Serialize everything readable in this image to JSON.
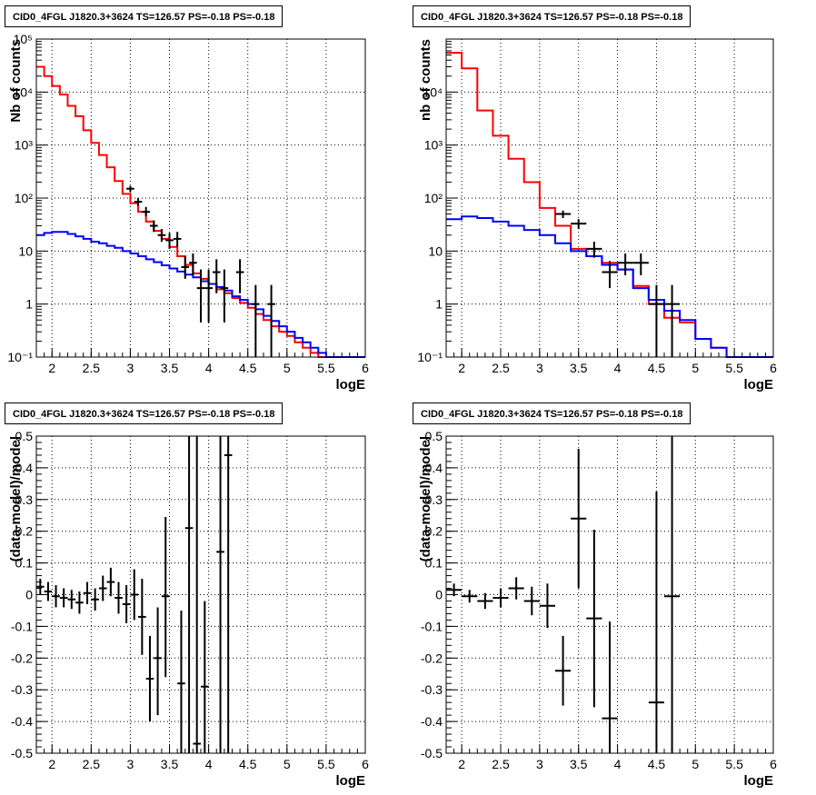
{
  "chart_data": [
    {
      "type": "line",
      "title": "CID0_4FGL J1820.3+3624 TS=126.57 PS=-0.18 PS=-0.18",
      "xlabel": "logE",
      "ylabel": "Nb of counts",
      "xlim": [
        1.8,
        6.0
      ],
      "ylim": [
        0.1,
        100000
      ],
      "yscale": "log",
      "grid": true,
      "xticks": [
        "2",
        "2.5",
        "3",
        "3.5",
        "4",
        "4.5",
        "5",
        "5.5",
        "6"
      ],
      "yticks": [
        "10⁻¹",
        "1",
        "10",
        "10²",
        "10³",
        "10⁴",
        "10⁵"
      ],
      "bin_edges": [
        1.8,
        1.9,
        2.0,
        2.1,
        2.2,
        2.3,
        2.4,
        2.5,
        2.6,
        2.7,
        2.8,
        2.9,
        3.0,
        3.1,
        3.2,
        3.3,
        3.4,
        3.5,
        3.6,
        3.7,
        3.8,
        3.9,
        4.0,
        4.1,
        4.2,
        4.3,
        4.4,
        4.5,
        4.6,
        4.7,
        4.8,
        4.9,
        5.0,
        5.1,
        5.2,
        5.3,
        5.4,
        5.5,
        5.6,
        5.7,
        5.8,
        5.9,
        6.0
      ],
      "series": [
        {
          "color": "#ff0000",
          "values": [
            30000,
            20000,
            13000,
            9000,
            5500,
            3500,
            1900,
            1100,
            650,
            380,
            210,
            120,
            80,
            55,
            36,
            24,
            17,
            12,
            8,
            5.5,
            3.8,
            3,
            2.4,
            1.9,
            1.6,
            1.3,
            1.05,
            0.85,
            0.65,
            0.5,
            0.38,
            0.3,
            0.25,
            0.19,
            0.15,
            0.12,
            0.1,
            0.1,
            0.1,
            0.1,
            0.1,
            0.1
          ]
        },
        {
          "color": "#0000ff",
          "values": [
            20,
            22,
            23,
            23,
            21,
            19,
            17,
            15,
            14,
            12.5,
            11.5,
            10,
            9,
            8,
            7,
            6.2,
            5.4,
            4.7,
            4.1,
            3.6,
            3.2,
            2.7,
            2.4,
            2.1,
            1.8,
            1.4,
            1.2,
            1.0,
            0.8,
            0.6,
            0.48,
            0.38,
            0.3,
            0.23,
            0.19,
            0.15,
            0.12,
            0.1,
            0.1,
            0.1,
            0.1,
            0.1
          ]
        }
      ],
      "points": [
        {
          "x": 3.0,
          "y": 150,
          "xerr": 0.05,
          "ylo": 130,
          "yhi": 170
        },
        {
          "x": 3.1,
          "y": 85,
          "xerr": 0.05,
          "ylo": 72,
          "yhi": 100
        },
        {
          "x": 3.2,
          "y": 55,
          "xerr": 0.05,
          "ylo": 45,
          "yhi": 68
        },
        {
          "x": 3.3,
          "y": 30,
          "xerr": 0.05,
          "ylo": 23,
          "yhi": 38
        },
        {
          "x": 3.4,
          "y": 20,
          "xerr": 0.05,
          "ylo": 15,
          "yhi": 26
        },
        {
          "x": 3.5,
          "y": 16,
          "xerr": 0.05,
          "ylo": 11,
          "yhi": 22
        },
        {
          "x": 3.6,
          "y": 17,
          "xerr": 0.05,
          "ylo": 12,
          "yhi": 23
        },
        {
          "x": 3.7,
          "y": 5,
          "xerr": 0.05,
          "ylo": 3,
          "yhi": 8
        },
        {
          "x": 3.8,
          "y": 6,
          "xerr": 0.05,
          "ylo": 3.5,
          "yhi": 9
        },
        {
          "x": 3.9,
          "y": 2,
          "xerr": 0.05,
          "ylo": 0.45,
          "yhi": 4.5
        },
        {
          "x": 4.0,
          "y": 2,
          "xerr": 0.05,
          "ylo": 0.45,
          "yhi": 4.5
        },
        {
          "x": 4.1,
          "y": 4,
          "xerr": 0.05,
          "ylo": 1.6,
          "yhi": 7
        },
        {
          "x": 4.2,
          "y": 2,
          "xerr": 0.05,
          "ylo": 0.45,
          "yhi": 4.5
        },
        {
          "x": 4.4,
          "y": 4,
          "xerr": 0.05,
          "ylo": 1.6,
          "yhi": 7
        },
        {
          "x": 4.6,
          "y": 1,
          "xerr": 0.05,
          "ylo": 0.1,
          "yhi": 2.3
        },
        {
          "x": 4.8,
          "y": 1,
          "xerr": 0.05,
          "ylo": 0.1,
          "yhi": 2.3
        }
      ]
    },
    {
      "type": "line",
      "title": "CID0_4FGL J1820.3+3624 TS=126.57 PS=-0.18 PS=-0.18",
      "xlabel": "logE",
      "ylabel": "nb of counts",
      "xlim": [
        1.8,
        6.0
      ],
      "ylim": [
        0.1,
        100000
      ],
      "yscale": "log",
      "grid": true,
      "xticks": [
        "2",
        "2.5",
        "3",
        "3.5",
        "4",
        "4.5",
        "5",
        "5.5",
        "6"
      ],
      "yticks": [
        "10⁻¹",
        "1",
        "10",
        "10²",
        "10³",
        "10⁴"
      ],
      "bin_edges": [
        1.8,
        2.0,
        2.2,
        2.4,
        2.6,
        2.8,
        3.0,
        3.2,
        3.4,
        3.6,
        3.8,
        4.0,
        4.2,
        4.4,
        4.6,
        4.8,
        5.0,
        5.2,
        5.4,
        5.6,
        5.8,
        6.0
      ],
      "series": [
        {
          "color": "#ff0000",
          "values": [
            55000,
            28000,
            4500,
            1500,
            550,
            200,
            65,
            30,
            11,
            8,
            6,
            4.5,
            2.2,
            1.0,
            0.55,
            0.45,
            0.22,
            0.15,
            0.1,
            0.1,
            0.1
          ]
        },
        {
          "color": "#0000ff",
          "values": [
            40,
            45,
            42,
            36,
            30,
            25,
            20,
            14,
            10,
            8,
            5.5,
            4.5,
            2,
            1.2,
            0.75,
            0.5,
            0.22,
            0.15,
            0.1,
            0.1,
            0.1
          ]
        }
      ],
      "points": [
        {
          "x": 3.3,
          "y": 50,
          "xerr": 0.1,
          "ylo": 42,
          "yhi": 58
        },
        {
          "x": 3.5,
          "y": 33,
          "xerr": 0.1,
          "ylo": 26,
          "yhi": 40
        },
        {
          "x": 3.7,
          "y": 11,
          "xerr": 0.1,
          "ylo": 7.5,
          "yhi": 15
        },
        {
          "x": 3.9,
          "y": 4,
          "xerr": 0.1,
          "ylo": 2,
          "yhi": 6.5
        },
        {
          "x": 4.1,
          "y": 6,
          "xerr": 0.1,
          "ylo": 3.5,
          "yhi": 9
        },
        {
          "x": 4.3,
          "y": 6,
          "xerr": 0.1,
          "ylo": 3.5,
          "yhi": 9
        },
        {
          "x": 4.5,
          "y": 1,
          "xerr": 0.1,
          "ylo": 0.1,
          "yhi": 2.3
        },
        {
          "x": 4.7,
          "y": 1,
          "xerr": 0.1,
          "ylo": 0.1,
          "yhi": 2.3
        }
      ]
    },
    {
      "type": "scatter",
      "title": "CID0_4FGL J1820.3+3624 TS=126.57 PS=-0.18 PS=-0.18",
      "xlabel": "logE",
      "ylabel": "(data-model)/model",
      "xlim": [
        1.8,
        6.0
      ],
      "ylim": [
        -0.5,
        0.5
      ],
      "grid": true,
      "xticks": [
        "2",
        "2.5",
        "3",
        "3.5",
        "4",
        "4.5",
        "5",
        "5.5",
        "6"
      ],
      "yticks": [
        "-0.5",
        "-0.4",
        "-0.3",
        "-0.2",
        "-0.1",
        "0",
        "0.1",
        "0.2",
        "0.3",
        "0.4",
        "0.5"
      ],
      "points": [
        {
          "x": 1.85,
          "y": 0.025,
          "xerr": 0.05,
          "ylo": 0.0,
          "yhi": 0.05
        },
        {
          "x": 1.95,
          "y": 0.01,
          "xerr": 0.05,
          "ylo": -0.02,
          "yhi": 0.04
        },
        {
          "x": 2.05,
          "y": -0.005,
          "xerr": 0.05,
          "ylo": -0.04,
          "yhi": 0.03
        },
        {
          "x": 2.15,
          "y": -0.01,
          "xerr": 0.05,
          "ylo": -0.04,
          "yhi": 0.02
        },
        {
          "x": 2.25,
          "y": -0.015,
          "xerr": 0.05,
          "ylo": -0.045,
          "yhi": 0.015
        },
        {
          "x": 2.35,
          "y": -0.025,
          "xerr": 0.05,
          "ylo": -0.06,
          "yhi": 0.01
        },
        {
          "x": 2.45,
          "y": 0.005,
          "xerr": 0.05,
          "ylo": -0.03,
          "yhi": 0.04
        },
        {
          "x": 2.55,
          "y": -0.015,
          "xerr": 0.05,
          "ylo": -0.05,
          "yhi": 0.02
        },
        {
          "x": 2.65,
          "y": 0.02,
          "xerr": 0.05,
          "ylo": -0.02,
          "yhi": 0.06
        },
        {
          "x": 2.75,
          "y": 0.04,
          "xerr": 0.05,
          "ylo": -0.005,
          "yhi": 0.085
        },
        {
          "x": 2.85,
          "y": -0.01,
          "xerr": 0.05,
          "ylo": -0.06,
          "yhi": 0.04
        },
        {
          "x": 2.95,
          "y": -0.03,
          "xerr": 0.05,
          "ylo": -0.09,
          "yhi": 0.03
        },
        {
          "x": 3.05,
          "y": 0.0,
          "xerr": 0.05,
          "ylo": -0.08,
          "yhi": 0.08
        },
        {
          "x": 3.15,
          "y": -0.07,
          "xerr": 0.05,
          "ylo": -0.19,
          "yhi": 0.05
        },
        {
          "x": 3.25,
          "y": -0.265,
          "xerr": 0.05,
          "ylo": -0.4,
          "yhi": -0.13
        },
        {
          "x": 3.35,
          "y": -0.2,
          "xerr": 0.05,
          "ylo": -0.38,
          "yhi": -0.04
        },
        {
          "x": 3.45,
          "y": -0.005,
          "xerr": 0.05,
          "ylo": -0.26,
          "yhi": 0.245
        },
        {
          "x": 3.65,
          "y": -0.28,
          "xerr": 0.05,
          "ylo": -0.5,
          "yhi": -0.05
        },
        {
          "x": 3.75,
          "y": 0.21,
          "xerr": 0.05,
          "ylo": -0.5,
          "yhi": 0.5
        },
        {
          "x": 3.85,
          "y": -0.47,
          "xerr": 0.05,
          "ylo": -0.5,
          "yhi": 0.5
        },
        {
          "x": 3.95,
          "y": -0.29,
          "xerr": 0.05,
          "ylo": -0.5,
          "yhi": -0.02
        },
        {
          "x": 4.15,
          "y": 0.135,
          "xerr": 0.05,
          "ylo": -0.5,
          "yhi": 0.5
        },
        {
          "x": 4.25,
          "y": 0.44,
          "xerr": 0.05,
          "ylo": -0.5,
          "yhi": 0.5
        }
      ]
    },
    {
      "type": "scatter",
      "title": "CID0_4FGL J1820.3+3624 TS=126.57 PS=-0.18 PS=-0.18",
      "xlabel": "logE",
      "ylabel": "(data-model)/model",
      "xlim": [
        1.8,
        6.0
      ],
      "ylim": [
        -0.5,
        0.5
      ],
      "grid": true,
      "xticks": [
        "2",
        "2.5",
        "3",
        "3.5",
        "4",
        "4.5",
        "5",
        "5.5",
        "6"
      ],
      "yticks": [
        "-0.5",
        "-0.4",
        "-0.3",
        "-0.2",
        "-0.1",
        "0",
        "0.1",
        "0.2",
        "0.3",
        "0.4",
        "0.5"
      ],
      "points": [
        {
          "x": 1.9,
          "y": 0.015,
          "xerr": 0.1,
          "ylo": -0.005,
          "yhi": 0.035
        },
        {
          "x": 2.1,
          "y": -0.005,
          "xerr": 0.1,
          "ylo": -0.025,
          "yhi": 0.015
        },
        {
          "x": 2.3,
          "y": -0.02,
          "xerr": 0.1,
          "ylo": -0.045,
          "yhi": 0.005
        },
        {
          "x": 2.5,
          "y": -0.01,
          "xerr": 0.1,
          "ylo": -0.04,
          "yhi": 0.02
        },
        {
          "x": 2.7,
          "y": 0.02,
          "xerr": 0.1,
          "ylo": -0.015,
          "yhi": 0.055
        },
        {
          "x": 2.9,
          "y": -0.02,
          "xerr": 0.1,
          "ylo": -0.065,
          "yhi": 0.025
        },
        {
          "x": 3.1,
          "y": -0.035,
          "xerr": 0.1,
          "ylo": -0.105,
          "yhi": 0.035
        },
        {
          "x": 3.3,
          "y": -0.24,
          "xerr": 0.1,
          "ylo": -0.35,
          "yhi": -0.13
        },
        {
          "x": 3.5,
          "y": 0.24,
          "xerr": 0.1,
          "ylo": 0.02,
          "yhi": 0.46
        },
        {
          "x": 3.7,
          "y": -0.075,
          "xerr": 0.1,
          "ylo": -0.355,
          "yhi": 0.205
        },
        {
          "x": 3.9,
          "y": -0.39,
          "xerr": 0.1,
          "ylo": -0.5,
          "yhi": -0.085
        },
        {
          "x": 4.5,
          "y": -0.34,
          "xerr": 0.1,
          "ylo": -0.5,
          "yhi": 0.325
        },
        {
          "x": 4.7,
          "y": -0.005,
          "xerr": 0.1,
          "ylo": -0.5,
          "yhi": 0.5
        }
      ]
    }
  ]
}
